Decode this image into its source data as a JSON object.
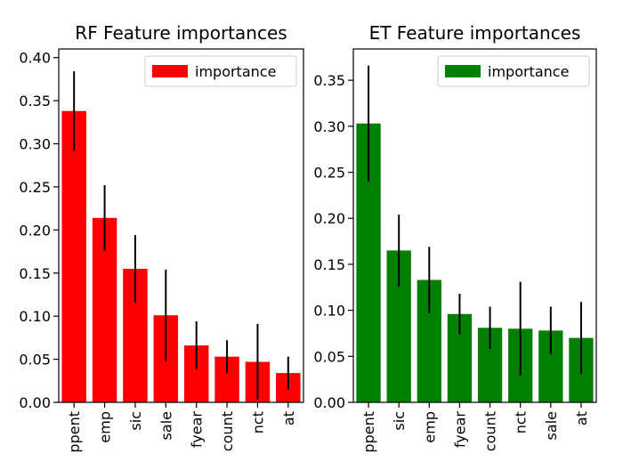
{
  "chart_data": [
    {
      "type": "bar",
      "title": "RF Feature importances",
      "xlabel": "",
      "ylabel": "",
      "categories": [
        "ppent",
        "emp",
        "sic",
        "sale",
        "fyear",
        "count",
        "nct",
        "at"
      ],
      "series": [
        {
          "name": "importance",
          "color": "#ff0000",
          "values": [
            0.338,
            0.214,
            0.155,
            0.101,
            0.066,
            0.053,
            0.047,
            0.034
          ],
          "errors": [
            0.046,
            0.038,
            0.039,
            0.053,
            0.028,
            0.019,
            0.044,
            0.019
          ]
        }
      ],
      "ylim": [
        0,
        0.41
      ],
      "yticks": [
        "0.00",
        "0.05",
        "0.10",
        "0.15",
        "0.20",
        "0.25",
        "0.30",
        "0.35",
        "0.40"
      ],
      "grid": false,
      "legend": "top-right"
    },
    {
      "type": "bar",
      "title": "ET Feature importances",
      "xlabel": "",
      "ylabel": "",
      "categories": [
        "ppent",
        "sic",
        "emp",
        "fyear",
        "count",
        "nct",
        "sale",
        "at"
      ],
      "series": [
        {
          "name": "importance",
          "color": "#008000",
          "values": [
            0.303,
            0.165,
            0.133,
            0.096,
            0.081,
            0.08,
            0.078,
            0.07
          ],
          "errors": [
            0.063,
            0.039,
            0.036,
            0.022,
            0.023,
            0.051,
            0.026,
            0.039
          ]
        }
      ],
      "ylim": [
        0,
        0.384
      ],
      "yticks": [
        "0.00",
        "0.05",
        "0.10",
        "0.15",
        "0.20",
        "0.25",
        "0.30",
        "0.35"
      ],
      "grid": false,
      "legend": "top-right"
    }
  ]
}
